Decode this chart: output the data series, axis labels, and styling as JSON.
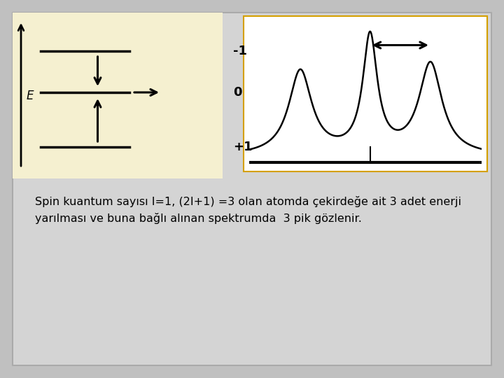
{
  "bg_outer": "#c0c0c0",
  "bg_slide": "#d4d4d4",
  "bg_left_panel": "#f5f0d0",
  "bg_right_panel": "#ffffff",
  "text_color": "#000000",
  "title_text": "Spin kuantum sayısı I=1, (2I+1) =3 olan atomda çekirdeğe ait 3 adet enerji\nyarılması ve buna bağlı alınan spektrumda  3 pik gözlenir.",
  "panel_border_color": "#b8b8b8",
  "right_border_color": "#d4a000"
}
